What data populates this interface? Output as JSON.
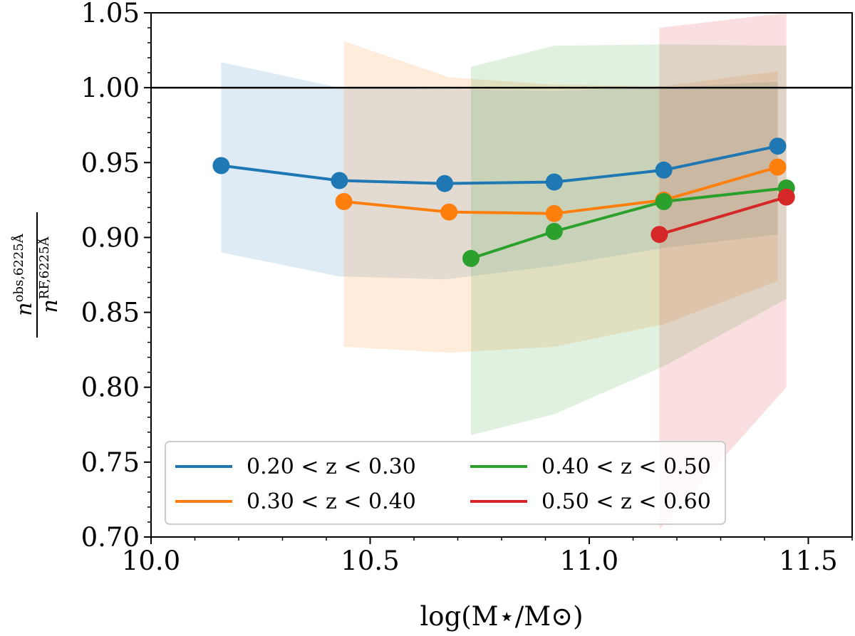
{
  "chart_data": {
    "type": "line",
    "xlabel": "log(M⋆/M⊙)",
    "ylabel": {
      "numerator": "n",
      "numerator_sup": "obs,6225Å",
      "denominator": "n",
      "denominator_sup": "RF,6225Å"
    },
    "xlim": [
      10.0,
      11.6
    ],
    "ylim": [
      0.7,
      1.05
    ],
    "xticks": [
      10.0,
      10.5,
      11.0,
      11.5
    ],
    "xtick_labels": [
      "10.0",
      "10.5",
      "11.0",
      "11.5"
    ],
    "yticks": [
      0.7,
      0.75,
      0.8,
      0.85,
      0.9,
      0.95,
      1.0,
      1.05
    ],
    "ytick_labels": [
      "0.70",
      "0.75",
      "0.80",
      "0.85",
      "0.90",
      "0.95",
      "1.00",
      "1.05"
    ],
    "reference_line": 1.0,
    "legend_position": "lower-left",
    "series": [
      {
        "name": "0.20 < z < 0.30",
        "color": "#1f77b4",
        "x": [
          10.16,
          10.43,
          10.67,
          10.92,
          11.17,
          11.43
        ],
        "y": [
          0.948,
          0.938,
          0.936,
          0.937,
          0.945,
          0.961
        ],
        "band_upper": [
          1.017,
          1.0,
          0.999,
          0.998,
          1.0,
          1.004
        ],
        "band_lower": [
          0.89,
          0.874,
          0.872,
          0.881,
          0.893,
          0.902
        ]
      },
      {
        "name": "0.30 < z < 0.40",
        "color": "#ff7f0e",
        "x": [
          10.44,
          10.68,
          10.92,
          11.17,
          11.43
        ],
        "y": [
          0.924,
          0.917,
          0.916,
          0.925,
          0.947
        ],
        "band_upper": [
          1.031,
          1.007,
          1.002,
          1.001,
          1.011
        ],
        "band_lower": [
          0.827,
          0.823,
          0.827,
          0.842,
          0.871
        ]
      },
      {
        "name": "0.40 < z < 0.50",
        "color": "#2ca02c",
        "x": [
          10.73,
          10.92,
          11.17,
          11.45
        ],
        "y": [
          0.886,
          0.904,
          0.924,
          0.933
        ],
        "band_upper": [
          1.014,
          1.028,
          1.029,
          1.028
        ],
        "band_lower": [
          0.768,
          0.782,
          0.814,
          0.859
        ]
      },
      {
        "name": "0.50 < z < 0.60",
        "color": "#d62728",
        "x": [
          11.16,
          11.45
        ],
        "y": [
          0.902,
          0.927
        ],
        "band_upper": [
          1.04,
          1.05
        ],
        "band_lower": [
          0.705,
          0.8
        ]
      }
    ]
  }
}
